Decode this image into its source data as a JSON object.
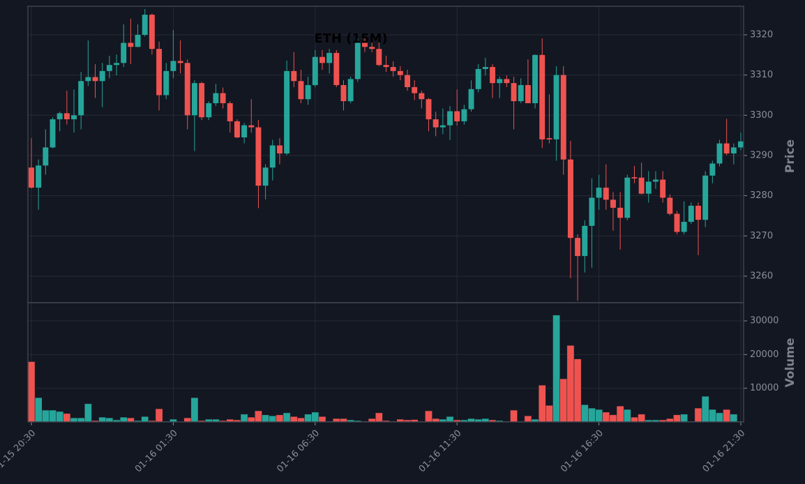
{
  "chart_data": {
    "type": "candlestick",
    "title": "ETH (15M)",
    "categories": [
      "01-15 20:30",
      null,
      null,
      null,
      null,
      null,
      null,
      null,
      null,
      null,
      null,
      null,
      null,
      null,
      null,
      null,
      null,
      null,
      null,
      null,
      "01-16 01:30",
      null,
      null,
      null,
      null,
      null,
      null,
      null,
      null,
      null,
      null,
      null,
      null,
      null,
      null,
      null,
      null,
      null,
      null,
      null,
      "01-16 06:30",
      null,
      null,
      null,
      null,
      null,
      null,
      null,
      null,
      null,
      null,
      null,
      null,
      null,
      null,
      null,
      null,
      null,
      null,
      null,
      "01-16 11:30",
      null,
      null,
      null,
      null,
      null,
      null,
      null,
      null,
      null,
      null,
      null,
      null,
      null,
      null,
      null,
      null,
      null,
      null,
      null,
      "01-16 16:30",
      null,
      null,
      null,
      null,
      null,
      null,
      null,
      null,
      null,
      null,
      null,
      null,
      null,
      null,
      null,
      null,
      null,
      null,
      null,
      "01-16 21:30"
    ],
    "open": [
      3287,
      3282,
      3287.5,
      3292,
      3299,
      3300.5,
      3299,
      3300,
      3308.5,
      3309.5,
      3308.5,
      3311,
      3312.5,
      3313,
      3318,
      3317,
      3320,
      3325,
      3316.5,
      3305,
      3311,
      3313.5,
      3313,
      3300,
      3308,
      3299.5,
      3303,
      3305.5,
      3303,
      3298.5,
      3294.5,
      3297.5,
      3297,
      3282.5,
      3287,
      3292.5,
      3290.5,
      3311,
      3308.5,
      3304,
      3307.5,
      3314.5,
      3313,
      3315.5,
      3307.5,
      3303.5,
      3309,
      3318,
      3317,
      3316.5,
      3312.5,
      3312,
      3311,
      3310,
      3307,
      3305.5,
      3304,
      3299,
      3297,
      3297.5,
      3301,
      3298.5,
      3301.5,
      3306.5,
      3311.5,
      3312,
      3308,
      3309,
      3308,
      3303.5,
      3307.5,
      3303,
      3315,
      3294.3,
      3294,
      3310,
      3289,
      3269.5,
      3265,
      3272.5,
      3279.5,
      3282,
      3279,
      3277,
      3274.5,
      3284.6,
      3284.5,
      3280.5,
      3283.5,
      3284,
      3279.5,
      3275.5,
      3271,
      3273.5,
      3277.5,
      3274,
      3285,
      3288,
      3293,
      3290.5,
      3292
    ],
    "high": [
      3294.3,
      3289,
      3296.5,
      3299.5,
      3300.9,
      3306.1,
      3306.4,
      3310.8,
      3318.6,
      3312.7,
      3313,
      3314.8,
      3315.1,
      3322.6,
      3324,
      3322.6,
      3326.4,
      3325.3,
      3318.3,
      3313,
      3321.2,
      3318.6,
      3313.9,
      3308.7,
      3308.3,
      3303.5,
      3307.8,
      3306.9,
      3303.5,
      3299,
      3298.1,
      3304,
      3298.8,
      3287.8,
      3293.9,
      3294.3,
      3313.6,
      3315.7,
      3311.3,
      3309.6,
      3316.2,
      3316.2,
      3316.5,
      3316.2,
      3308.7,
      3309.6,
      3319.1,
      3319.1,
      3318.6,
      3318.3,
      3314.8,
      3313.4,
      3312.2,
      3311.3,
      3308.7,
      3306.1,
      3304.3,
      3300.9,
      3301.7,
      3302.3,
      3306.4,
      3302.6,
      3308.7,
      3312.7,
      3314.3,
      3312.7,
      3309.6,
      3309.9,
      3309.6,
      3309.2,
      3313.9,
      3315.1,
      3319.1,
      3305.2,
      3312.2,
      3312.2,
      3293.6,
      3270.4,
      3273.9,
      3284.3,
      3285.2,
      3287.8,
      3280.9,
      3280.9,
      3285.2,
      3287.4,
      3288.2,
      3286.1,
      3286.1,
      3286.1,
      3280.3,
      3276.2,
      3278.6,
      3278.3,
      3278.3,
      3286.1,
      3288.7,
      3293.9,
      3299.1,
      3293,
      3295.7
    ],
    "low": [
      3281.8,
      3276.5,
      3285.2,
      3291.8,
      3296,
      3297.7,
      3295.7,
      3296.5,
      3307.3,
      3304.3,
      3302,
      3309.2,
      3309.9,
      3312,
      3312.7,
      3316.9,
      3319.6,
      3315.1,
      3301.2,
      3304,
      3309.2,
      3310.4,
      3296.5,
      3291.1,
      3298.8,
      3298.8,
      3302.3,
      3301.7,
      3295.7,
      3294.3,
      3293,
      3295.7,
      3276.9,
      3279.1,
      3283.8,
      3287.8,
      3290.1,
      3307,
      3303,
      3302.6,
      3307,
      3311.3,
      3310.4,
      3307,
      3301.2,
      3303,
      3308.3,
      3315.7,
      3315.7,
      3312.2,
      3310.8,
      3309.6,
      3308.7,
      3306.1,
      3303.8,
      3301.7,
      3296,
      3294.8,
      3295.3,
      3293.9,
      3297.4,
      3297.7,
      3300.9,
      3305.7,
      3309.9,
      3304.3,
      3304.3,
      3307,
      3296.5,
      3303,
      3303,
      3301.7,
      3291.8,
      3293,
      3288.7,
      3285.2,
      3259.5,
      3253.9,
      3260.9,
      3262.1,
      3276.5,
      3276.5,
      3271.3,
      3266.6,
      3273.9,
      3283.1,
      3280.3,
      3278.3,
      3281.7,
      3278.3,
      3275.1,
      3270.4,
      3270.4,
      3273,
      3265.2,
      3272.2,
      3283.1,
      3287.3,
      3290.1,
      3287.8,
      3291.3
    ],
    "close": [
      3282,
      3287.5,
      3292,
      3299,
      3300.5,
      3299,
      3300,
      3308.5,
      3309.5,
      3308.5,
      3311,
      3312.5,
      3313,
      3318,
      3317,
      3320,
      3325,
      3316.5,
      3305,
      3311,
      3313.5,
      3313,
      3300,
      3308,
      3299.5,
      3303,
      3305.5,
      3303,
      3298.5,
      3294.5,
      3297.5,
      3297,
      3282.5,
      3287,
      3292.5,
      3290.5,
      3311,
      3308.5,
      3304,
      3307.5,
      3314.5,
      3313,
      3315.5,
      3307.5,
      3303.5,
      3309,
      3318,
      3317,
      3316.5,
      3312.5,
      3312,
      3311,
      3310,
      3307,
      3305.5,
      3304,
      3299,
      3297,
      3297.5,
      3301,
      3298.5,
      3301.5,
      3306.5,
      3311.5,
      3312,
      3308,
      3309,
      3308,
      3303.5,
      3307.5,
      3303,
      3315,
      3294,
      3294,
      3310,
      3289,
      3269.5,
      3265,
      3272.5,
      3279.5,
      3282,
      3279,
      3277,
      3274.5,
      3284.5,
      3284.3,
      3280.5,
      3283.5,
      3284,
      3279.5,
      3275.5,
      3271,
      3273.5,
      3277.5,
      3274,
      3285,
      3288,
      3293,
      3290.5,
      3292,
      3293.5
    ],
    "volume": [
      17900,
      7200,
      3500,
      3500,
      3100,
      2500,
      1200,
      1200,
      5400,
      400,
      1400,
      1200,
      600,
      1400,
      1200,
      400,
      1600,
      400,
      3900,
      200,
      800,
      100,
      1200,
      7200,
      400,
      800,
      800,
      400,
      800,
      600,
      2300,
      1400,
      3300,
      2100,
      1800,
      2100,
      2700,
      1600,
      1200,
      2300,
      2900,
      1600,
      200,
      1000,
      1000,
      600,
      400,
      200,
      1000,
      2700,
      400,
      200,
      800,
      600,
      700,
      200,
      3300,
      1000,
      800,
      1600,
      600,
      600,
      1000,
      800,
      1000,
      600,
      400,
      200,
      3500,
      200,
      1800,
      800,
      10900,
      4900,
      31700,
      12800,
      22700,
      18700,
      5100,
      4100,
      3700,
      2900,
      2100,
      4700,
      3700,
      1400,
      2300,
      600,
      600,
      600,
      1000,
      2100,
      2300,
      200,
      4100,
      7600,
      3700,
      2700,
      3700,
      2300,
      200
    ],
    "up_color": "#26a69a",
    "down_color": "#ef5350",
    "ylabel": "Price",
    "ylim": [
      3253.4,
      3327.1
    ],
    "yticks": [
      3260,
      3270,
      3280,
      3290,
      3300,
      3310,
      3320
    ],
    "volume_ylabel": "Volume",
    "volume_ylim": [
      0,
      35400
    ],
    "volume_yticks": [
      10000,
      20000,
      30000
    ],
    "grid": true
  }
}
